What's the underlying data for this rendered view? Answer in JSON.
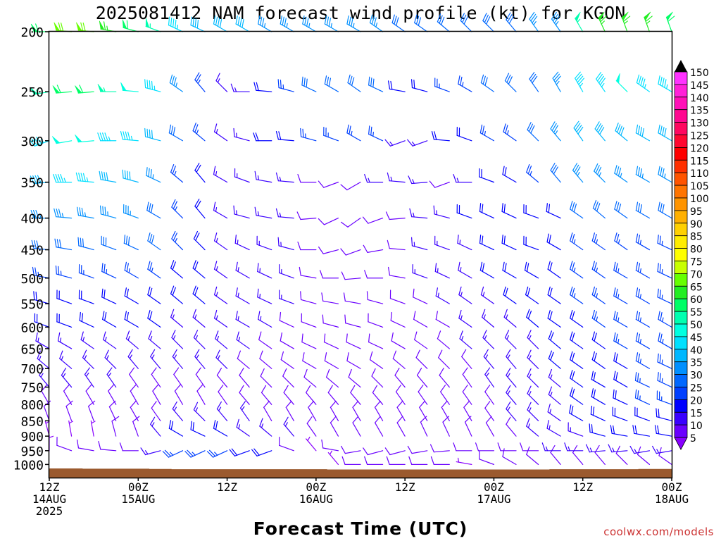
{
  "chart_data": {
    "type": "wind_profile",
    "title": "2025081412 NAM forecast wind profile (kt) for KGON",
    "xlabel": "Forecast Time (UTC)",
    "ylabel": "",
    "credit": "coolwx.com/models",
    "y_scale": "log",
    "ylim": [
      1050,
      200
    ],
    "y_ticks": [
      200,
      250,
      300,
      350,
      400,
      450,
      500,
      550,
      600,
      650,
      700,
      750,
      800,
      850,
      900,
      950,
      1000
    ],
    "y_tick_labels": [
      "200",
      "250",
      "300",
      "350",
      "400",
      "450",
      "500",
      "550",
      "600",
      "650",
      "700",
      "750",
      "800",
      "850",
      "900",
      "950",
      "1000"
    ],
    "x_range_hours": [
      0,
      84
    ],
    "x_ticks": [
      {
        "hour": 0,
        "lines": [
          "12Z",
          "14AUG",
          "2025"
        ]
      },
      {
        "hour": 12,
        "lines": [
          "00Z",
          "15AUG"
        ]
      },
      {
        "hour": 24,
        "lines": [
          "12Z"
        ]
      },
      {
        "hour": 36,
        "lines": [
          "00Z",
          "16AUG"
        ]
      },
      {
        "hour": 48,
        "lines": [
          "12Z"
        ]
      },
      {
        "hour": 60,
        "lines": [
          "00Z",
          "17AUG"
        ]
      },
      {
        "hour": 72,
        "lines": [
          "12Z"
        ]
      },
      {
        "hour": 84,
        "lines": [
          "00Z",
          "18AUG"
        ]
      }
    ],
    "forecast_hours": [
      0,
      3,
      6,
      9,
      12,
      15,
      18,
      21,
      24,
      27,
      30,
      33,
      36,
      39,
      42,
      45,
      48,
      51,
      54,
      57,
      60,
      63,
      66,
      69,
      72,
      75,
      78,
      81,
      84
    ],
    "levels_hpa": [
      1000,
      950,
      900,
      850,
      800,
      750,
      700,
      650,
      600,
      550,
      500,
      450,
      400,
      350,
      300,
      250,
      200
    ],
    "barbs": {
      "200": {
        "dir": [
          270,
          275,
          275,
          280,
          285,
          290,
          295,
          295,
          300,
          300,
          300,
          300,
          300,
          300,
          300,
          305,
          305,
          305,
          310,
          315,
          315,
          320,
          325,
          325,
          330,
          335,
          340,
          340,
          340
        ],
        "spd": [
          60,
          70,
          70,
          65,
          60,
          55,
          45,
          40,
          40,
          40,
          35,
          35,
          35,
          35,
          35,
          35,
          30,
          30,
          30,
          30,
          30,
          30,
          35,
          35,
          55,
          65,
          65,
          65,
          60
        ]
      },
      "250": {
        "dir": [
          260,
          265,
          265,
          270,
          275,
          285,
          305,
          320,
          315,
          270,
          275,
          285,
          295,
          300,
          305,
          295,
          280,
          285,
          290,
          300,
          305,
          315,
          325,
          330,
          330,
          325,
          315,
          305,
          300
        ],
        "spd": [
          55,
          60,
          60,
          55,
          50,
          45,
          35,
          25,
          15,
          15,
          20,
          25,
          30,
          30,
          30,
          30,
          20,
          20,
          25,
          25,
          30,
          30,
          30,
          35,
          45,
          45,
          50,
          45,
          45
        ]
      },
      "300": {
        "dir": [
          250,
          260,
          265,
          270,
          275,
          285,
          300,
          310,
          305,
          285,
          270,
          275,
          285,
          290,
          300,
          295,
          250,
          250,
          275,
          290,
          300,
          305,
          315,
          320,
          325,
          320,
          310,
          300,
          300
        ],
        "spd": [
          45,
          50,
          50,
          45,
          45,
          40,
          30,
          25,
          15,
          15,
          20,
          20,
          25,
          25,
          25,
          25,
          15,
          15,
          20,
          20,
          25,
          25,
          30,
          35,
          40,
          40,
          40,
          40,
          40
        ]
      },
      "350": {
        "dir": [
          265,
          270,
          275,
          280,
          285,
          295,
          310,
          320,
          300,
          290,
          280,
          275,
          270,
          250,
          240,
          270,
          275,
          265,
          250,
          270,
          290,
          300,
          310,
          320,
          320,
          315,
          305,
          300,
          300
        ],
        "spd": [
          40,
          45,
          45,
          40,
          40,
          35,
          25,
          20,
          15,
          15,
          15,
          15,
          10,
          10,
          10,
          15,
          15,
          15,
          10,
          15,
          20,
          20,
          25,
          30,
          35,
          35,
          35,
          35,
          35
        ]
      },
      "400": {
        "dir": [
          270,
          275,
          280,
          285,
          290,
          300,
          315,
          320,
          300,
          285,
          280,
          275,
          265,
          245,
          235,
          250,
          265,
          275,
          285,
          290,
          295,
          295,
          290,
          295,
          305,
          310,
          305,
          300,
          300
        ],
        "spd": [
          35,
          35,
          35,
          35,
          35,
          30,
          25,
          20,
          15,
          15,
          15,
          15,
          10,
          10,
          10,
          10,
          10,
          15,
          15,
          20,
          20,
          20,
          20,
          20,
          30,
          30,
          30,
          30,
          30
        ]
      },
      "450": {
        "dir": [
          275,
          280,
          285,
          290,
          295,
          305,
          315,
          315,
          305,
          295,
          290,
          285,
          270,
          255,
          250,
          260,
          275,
          285,
          290,
          295,
          295,
          295,
          290,
          300,
          305,
          305,
          305,
          300,
          295
        ],
        "spd": [
          30,
          30,
          30,
          30,
          30,
          30,
          25,
          20,
          15,
          15,
          15,
          15,
          10,
          10,
          10,
          10,
          10,
          15,
          15,
          15,
          20,
          20,
          20,
          20,
          25,
          25,
          25,
          25,
          25
        ]
      },
      "500": {
        "dir": [
          280,
          285,
          290,
          295,
          300,
          305,
          310,
          310,
          305,
          300,
          295,
          290,
          280,
          270,
          265,
          270,
          280,
          290,
          295,
          300,
          300,
          300,
          300,
          305,
          305,
          305,
          300,
          300,
          295
        ],
        "spd": [
          25,
          25,
          25,
          25,
          25,
          25,
          20,
          20,
          15,
          15,
          15,
          15,
          10,
          10,
          10,
          10,
          10,
          15,
          15,
          15,
          20,
          20,
          20,
          20,
          25,
          25,
          25,
          25,
          25
        ]
      },
      "550": {
        "dir": [
          285,
          290,
          290,
          295,
          300,
          305,
          310,
          310,
          305,
          300,
          295,
          290,
          285,
          280,
          280,
          285,
          290,
          295,
          300,
          305,
          305,
          305,
          305,
          305,
          305,
          305,
          300,
          300,
          295
        ],
        "spd": [
          20,
          20,
          20,
          20,
          20,
          20,
          20,
          20,
          15,
          15,
          15,
          15,
          10,
          10,
          10,
          10,
          10,
          10,
          15,
          15,
          15,
          20,
          20,
          20,
          25,
          25,
          25,
          25,
          25
        ]
      },
      "600": {
        "dir": [
          290,
          290,
          295,
          300,
          300,
          305,
          310,
          310,
          305,
          300,
          300,
          295,
          290,
          285,
          285,
          290,
          295,
          300,
          300,
          305,
          310,
          310,
          310,
          305,
          305,
          305,
          300,
          300,
          300
        ],
        "spd": [
          20,
          20,
          20,
          20,
          20,
          20,
          15,
          15,
          15,
          15,
          15,
          10,
          10,
          10,
          10,
          10,
          10,
          10,
          10,
          15,
          15,
          15,
          20,
          20,
          20,
          25,
          25,
          25,
          25
        ]
      },
      "650": {
        "dir": [
          300,
          300,
          305,
          305,
          310,
          310,
          315,
          315,
          310,
          305,
          305,
          300,
          295,
          295,
          295,
          295,
          300,
          305,
          310,
          310,
          315,
          315,
          315,
          310,
          305,
          305,
          300,
          300,
          300
        ],
        "spd": [
          15,
          15,
          15,
          15,
          15,
          15,
          15,
          15,
          15,
          15,
          10,
          10,
          10,
          10,
          10,
          10,
          10,
          10,
          10,
          15,
          15,
          15,
          15,
          20,
          20,
          20,
          25,
          25,
          25
        ]
      },
      "700": {
        "dir": [
          310,
          310,
          315,
          315,
          320,
          320,
          320,
          320,
          315,
          310,
          310,
          305,
          300,
          300,
          300,
          305,
          310,
          315,
          315,
          320,
          320,
          320,
          315,
          310,
          305,
          305,
          300,
          300,
          295
        ],
        "spd": [
          15,
          15,
          15,
          15,
          15,
          15,
          15,
          15,
          15,
          10,
          10,
          10,
          10,
          10,
          10,
          10,
          10,
          10,
          10,
          10,
          15,
          15,
          15,
          20,
          20,
          20,
          20,
          25,
          25
        ]
      },
      "750": {
        "dir": [
          320,
          320,
          325,
          325,
          325,
          325,
          325,
          325,
          320,
          320,
          315,
          315,
          310,
          310,
          310,
          315,
          320,
          320,
          320,
          325,
          325,
          320,
          315,
          310,
          305,
          300,
          300,
          295,
          295
        ],
        "spd": [
          15,
          15,
          15,
          15,
          10,
          10,
          10,
          10,
          10,
          10,
          10,
          10,
          10,
          10,
          10,
          10,
          10,
          10,
          10,
          10,
          15,
          15,
          15,
          15,
          20,
          20,
          20,
          25,
          25
        ]
      },
      "800": {
        "dir": [
          330,
          330,
          330,
          330,
          330,
          330,
          330,
          330,
          325,
          320,
          320,
          320,
          320,
          320,
          320,
          320,
          325,
          325,
          325,
          325,
          325,
          320,
          315,
          310,
          305,
          300,
          295,
          295,
          290
        ],
        "spd": [
          10,
          10,
          10,
          10,
          10,
          10,
          10,
          10,
          10,
          10,
          10,
          10,
          10,
          10,
          10,
          10,
          10,
          10,
          10,
          10,
          10,
          15,
          15,
          15,
          20,
          20,
          20,
          25,
          25
        ]
      },
      "850": {
        "dir": [
          340,
          340,
          340,
          335,
          330,
          325,
          320,
          315,
          320,
          325,
          330,
          330,
          330,
          330,
          330,
          330,
          330,
          330,
          330,
          330,
          325,
          320,
          315,
          305,
          300,
          295,
          290,
          290,
          285
        ],
        "spd": [
          10,
          10,
          10,
          10,
          10,
          10,
          15,
          15,
          15,
          15,
          10,
          10,
          10,
          10,
          10,
          10,
          10,
          10,
          10,
          10,
          10,
          15,
          15,
          15,
          20,
          20,
          20,
          20,
          20
        ]
      },
      "900": {
        "dir": [
          345,
          350,
          350,
          345,
          340,
          320,
          300,
          295,
          300,
          305,
          310,
          320,
          325,
          330,
          330,
          330,
          330,
          335,
          335,
          335,
          330,
          320,
          310,
          300,
          290,
          285,
          280,
          280,
          280
        ],
        "spd": [
          5,
          5,
          5,
          10,
          10,
          15,
          20,
          20,
          20,
          15,
          15,
          15,
          10,
          10,
          10,
          10,
          10,
          10,
          10,
          10,
          10,
          10,
          15,
          15,
          15,
          20,
          20,
          20,
          20
        ]
      },
      "950": {
        "dir": [
          0,
          290,
          280,
          275,
          270,
          255,
          245,
          245,
          245,
          250,
          250,
          290,
          320,
          280,
          260,
          255,
          255,
          260,
          265,
          270,
          270,
          270,
          270,
          270,
          270,
          265,
          265,
          260,
          260
        ],
        "spd": [
          5,
          10,
          10,
          10,
          10,
          15,
          25,
          25,
          25,
          20,
          20,
          10,
          5,
          10,
          10,
          10,
          10,
          10,
          10,
          10,
          10,
          10,
          10,
          15,
          15,
          15,
          15,
          15,
          15
        ]
      },
      "1000": {
        "dir": [
          0,
          0,
          0,
          0,
          0,
          0,
          0,
          0,
          0,
          0,
          0,
          0,
          0,
          320,
          270,
          270,
          270,
          270,
          270,
          280,
          290,
          300,
          310,
          320,
          320,
          320,
          315,
          310,
          305
        ],
        "spd": [
          0,
          0,
          0,
          0,
          0,
          0,
          0,
          0,
          0,
          0,
          0,
          0,
          0,
          5,
          10,
          10,
          10,
          10,
          10,
          5,
          10,
          10,
          10,
          10,
          10,
          10,
          10,
          10,
          10
        ]
      }
    },
    "surface_pressure_hpa": [
      1015,
      1015,
      1016,
      1016,
      1016,
      1017,
      1018,
      1018,
      1018,
      1018,
      1018,
      1018,
      1018,
      1019,
      1019,
      1019,
      1019,
      1019,
      1019,
      1019,
      1019,
      1019,
      1019,
      1018,
      1018,
      1018,
      1018,
      1017,
      1017
    ],
    "surface_color": "#9b5a2e",
    "colorbar": {
      "labels": [
        "150",
        "145",
        "140",
        "135",
        "130",
        "125",
        "120",
        "115",
        "110",
        "105",
        "100",
        "95",
        "90",
        "85",
        "80",
        "75",
        "70",
        "65",
        "60",
        "55",
        "50",
        "45",
        "40",
        "35",
        "30",
        "25",
        "20",
        "15",
        "10",
        "5"
      ],
      "values": [
        150,
        145,
        140,
        135,
        130,
        125,
        120,
        115,
        110,
        105,
        100,
        95,
        90,
        85,
        80,
        75,
        70,
        65,
        60,
        55,
        50,
        45,
        40,
        35,
        30,
        25,
        20,
        15,
        10,
        5
      ],
      "colors": [
        "#ff33ff",
        "#ff20d8",
        "#ff10b8",
        "#ff0890",
        "#ff0860",
        "#ff0830",
        "#ff0000",
        "#ff3000",
        "#ff5400",
        "#ff7400",
        "#ff9400",
        "#ffb000",
        "#ffd000",
        "#ffec00",
        "#ffff00",
        "#c8ff00",
        "#66ff00",
        "#22ee22",
        "#00ff66",
        "#00ffb0",
        "#00ffe0",
        "#00e0ff",
        "#00b8ff",
        "#0090ff",
        "#0068ff",
        "#0040ff",
        "#0000ff",
        "#3a00ff",
        "#6a00ff",
        "#8800ff"
      ],
      "top_arrow_color": "#000000",
      "bottom_arrow_color": "#8800ff"
    }
  }
}
